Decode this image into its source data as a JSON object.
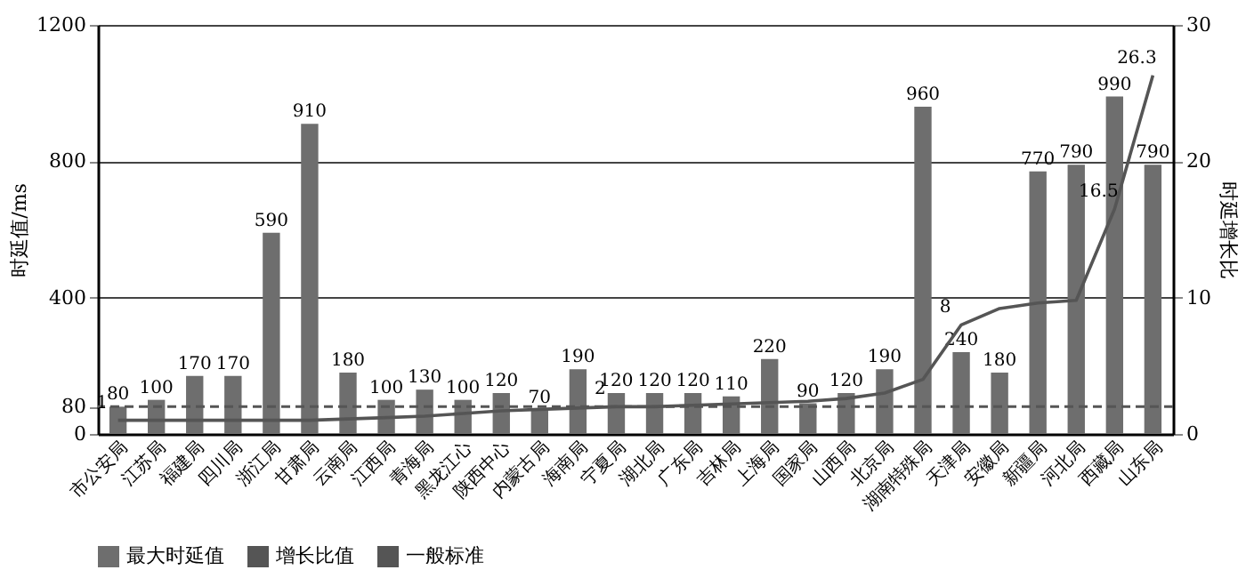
{
  "chart_data": {
    "type": "bar",
    "categories": [
      "市公安局",
      "江苏局",
      "福建局",
      "四川局",
      "浙江局",
      "甘肃局",
      "云南局",
      "江西局",
      "青海局",
      "黑龙江心",
      "陕西中心",
      "内蒙古局",
      "海南局",
      "宁夏局",
      "湖北局",
      "广东局",
      "吉林局",
      "上海局",
      "国家局",
      "山西局",
      "北京局",
      "湖南特殊局",
      "天津局",
      "安徽局",
      "新疆局",
      "河北局",
      "西藏局",
      "山东局"
    ],
    "series": [
      {
        "name": "最大时延值",
        "color": "#6e6e6e",
        "values": [
          80,
          100,
          170,
          170,
          590,
          910,
          180,
          100,
          130,
          100,
          120,
          70,
          190,
          120,
          120,
          120,
          110,
          220,
          90,
          120,
          190,
          960,
          240,
          180,
          770,
          790,
          990,
          790
        ]
      },
      {
        "name": "增长比值",
        "type": "line",
        "axis": "y2",
        "color": "#555555",
        "values": [
          1,
          1,
          1,
          1,
          1,
          1,
          1.1,
          1.2,
          1.3,
          1.5,
          1.7,
          1.8,
          1.9,
          2,
          2,
          2.1,
          2.2,
          2.3,
          2.4,
          2.6,
          3,
          4,
          8,
          9.2,
          9.6,
          9.8,
          16.5,
          26.3
        ],
        "value_labels": [
          "1",
          null,
          null,
          null,
          null,
          null,
          null,
          null,
          null,
          null,
          null,
          null,
          null,
          "2",
          null,
          null,
          null,
          null,
          null,
          null,
          null,
          null,
          "8",
          null,
          null,
          null,
          "16.5",
          "26.3"
        ]
      }
    ],
    "ref_lines": [
      {
        "axis": "y",
        "value": 80,
        "label": "一般标准",
        "color": "#555555",
        "line_style": "dashed"
      }
    ],
    "ylabel": "时延值/ms",
    "y2label": "时延增长比",
    "ylim": [
      0,
      1200
    ],
    "yticks": [
      0,
      80,
      400,
      800,
      1200
    ],
    "y2lim": [
      0,
      30
    ],
    "y2ticks": [
      0,
      10,
      20,
      30
    ],
    "grid": "y",
    "legend": "bottom",
    "data_labels": true,
    "marker": "none",
    "line_style": "solid"
  }
}
